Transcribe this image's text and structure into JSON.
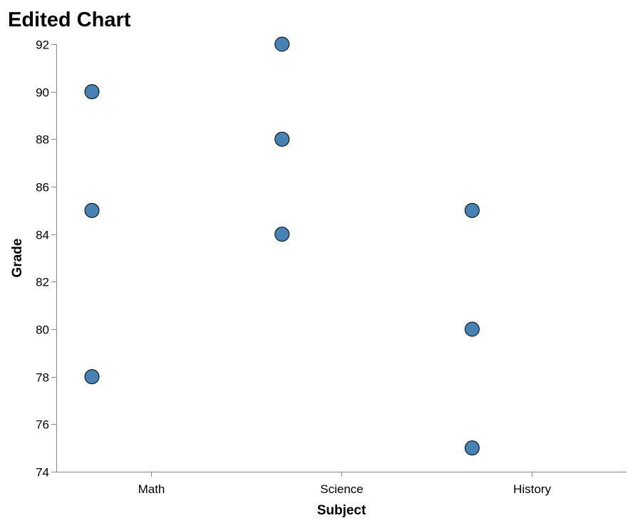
{
  "chart_data": {
    "type": "scatter",
    "title": "Edited Chart",
    "xlabel": "Subject",
    "ylabel": "Grade",
    "categories": [
      "Math",
      "Science",
      "History"
    ],
    "y_ticks": [
      "74",
      "76",
      "78",
      "80",
      "82",
      "84",
      "86",
      "88",
      "90",
      "92"
    ],
    "ylim": [
      74,
      92
    ],
    "grid": false,
    "legend": "none",
    "point_color": "#4682b4",
    "points": [
      {
        "x": "Math",
        "y": 90
      },
      {
        "x": "Math",
        "y": 85
      },
      {
        "x": "Math",
        "y": 78
      },
      {
        "x": "Science",
        "y": 92
      },
      {
        "x": "Science",
        "y": 88
      },
      {
        "x": "Science",
        "y": 84
      },
      {
        "x": "History",
        "y": 85
      },
      {
        "x": "History",
        "y": 80
      },
      {
        "x": "History",
        "y": 75
      }
    ]
  }
}
